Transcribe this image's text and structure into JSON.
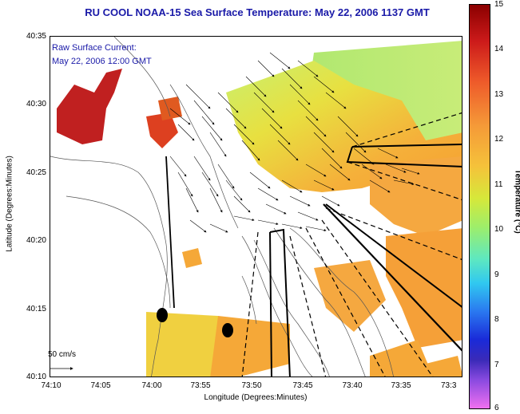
{
  "title": "RU COOL  NOAA-15  Sea Surface Temperature:  May 22, 2006 1137 GMT",
  "legend": {
    "line1": "Raw Surface Current:",
    "line2": "May 22, 2006 12:00 GMT",
    "scale": "50 cm/s"
  },
  "axes": {
    "xlabel": "Longitude (Degrees:Minutes)",
    "ylabel": "Latitude (Degrees:Minutes)",
    "xticks": [
      "74:10",
      "74:05",
      "74:00",
      "73:55",
      "73:50",
      "73:45",
      "73:40",
      "73:35",
      "73:3"
    ],
    "yticks": [
      "40:35",
      "40:30",
      "40:25",
      "40:20",
      "40:15",
      "40:10"
    ]
  },
  "colorbar": {
    "label": "Temperature (°C)",
    "ticks": [
      "15",
      "14",
      "13",
      "12",
      "11",
      "10",
      "9",
      "8",
      "7",
      "6"
    ],
    "min": 6,
    "max": 15
  },
  "colors": {
    "title": "#1a1aa8",
    "land_warm": "#f5a640",
    "sea_green": "#b8e868",
    "hot_red": "#cc2020"
  }
}
